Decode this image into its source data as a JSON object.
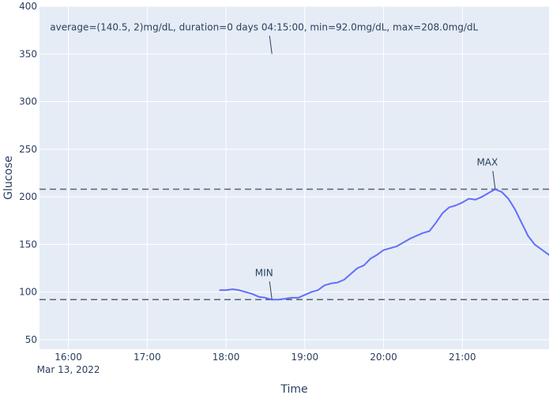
{
  "chart_data": {
    "type": "line",
    "xlabel": "Time",
    "ylabel": "Glucose",
    "ylim": [
      40,
      400
    ],
    "xlim": [
      "2022-03-13 15:38",
      "2022-03-13 22:06"
    ],
    "grid": true,
    "colors": {
      "plot_bg": "#e5ecf6",
      "grid": "#ffffff",
      "line": "#636efa",
      "ref_line": "#5a6273",
      "text": "#2a3f5f"
    },
    "y_ticks": [
      50,
      100,
      150,
      200,
      250,
      300,
      350,
      400
    ],
    "x_ticks": [
      {
        "time": "2022-03-13 16:00",
        "label": "16:00",
        "sublabel": "Mar 13, 2022"
      },
      {
        "time": "2022-03-13 17:00",
        "label": "17:00",
        "sublabel": ""
      },
      {
        "time": "2022-03-13 18:00",
        "label": "18:00",
        "sublabel": ""
      },
      {
        "time": "2022-03-13 19:00",
        "label": "19:00",
        "sublabel": ""
      },
      {
        "time": "2022-03-13 20:00",
        "label": "20:00",
        "sublabel": ""
      },
      {
        "time": "2022-03-13 21:00",
        "label": "21:00",
        "sublabel": ""
      }
    ],
    "series": [
      {
        "x": [
          "2022-03-13 17:55",
          "2022-03-13 18:00",
          "2022-03-13 18:05",
          "2022-03-13 18:10",
          "2022-03-13 18:15",
          "2022-03-13 18:20",
          "2022-03-13 18:25",
          "2022-03-13 18:30",
          "2022-03-13 18:35",
          "2022-03-13 18:40",
          "2022-03-13 18:45",
          "2022-03-13 18:50",
          "2022-03-13 18:55",
          "2022-03-13 19:00",
          "2022-03-13 19:05",
          "2022-03-13 19:10",
          "2022-03-13 19:15",
          "2022-03-13 19:20",
          "2022-03-13 19:25",
          "2022-03-13 19:30",
          "2022-03-13 19:35",
          "2022-03-13 19:40",
          "2022-03-13 19:45",
          "2022-03-13 19:50",
          "2022-03-13 19:55",
          "2022-03-13 20:00",
          "2022-03-13 20:05",
          "2022-03-13 20:10",
          "2022-03-13 20:15",
          "2022-03-13 20:20",
          "2022-03-13 20:25",
          "2022-03-13 20:30",
          "2022-03-13 20:35",
          "2022-03-13 20:40",
          "2022-03-13 20:45",
          "2022-03-13 20:50",
          "2022-03-13 20:55",
          "2022-03-13 21:00",
          "2022-03-13 21:05",
          "2022-03-13 21:10",
          "2022-03-13 21:15",
          "2022-03-13 21:20",
          "2022-03-13 21:25",
          "2022-03-13 21:30",
          "2022-03-13 21:35",
          "2022-03-13 21:40",
          "2022-03-13 21:45",
          "2022-03-13 21:50",
          "2022-03-13 21:55",
          "2022-03-13 22:00",
          "2022-03-13 22:05",
          "2022-03-13 22:10"
        ],
        "y": [
          102,
          102,
          103,
          102,
          100,
          98,
          95,
          94,
          92,
          92,
          93,
          94,
          94,
          97,
          100,
          102,
          107,
          109,
          110,
          113,
          119,
          125,
          128,
          135,
          139,
          144,
          146,
          148,
          152,
          156,
          159,
          162,
          164,
          173,
          183,
          189,
          191,
          194,
          198,
          197,
          200,
          204,
          208,
          205,
          198,
          187,
          173,
          159,
          150,
          145,
          140,
          135
        ]
      }
    ],
    "reference_lines": [
      208,
      92
    ],
    "annotations": [
      {
        "label": "MAX",
        "x": "2022-03-13 21:25",
        "y": 208
      },
      {
        "label": "MIN",
        "x": "2022-03-13 18:35",
        "y": 92
      },
      {
        "label": "average=(140.5, 2)mg/dL, duration=0 days 04:15:00, min=92.0mg/dL, max=208.0mg/dL",
        "x": "2022-03-13 18:35",
        "y": 350
      }
    ]
  }
}
